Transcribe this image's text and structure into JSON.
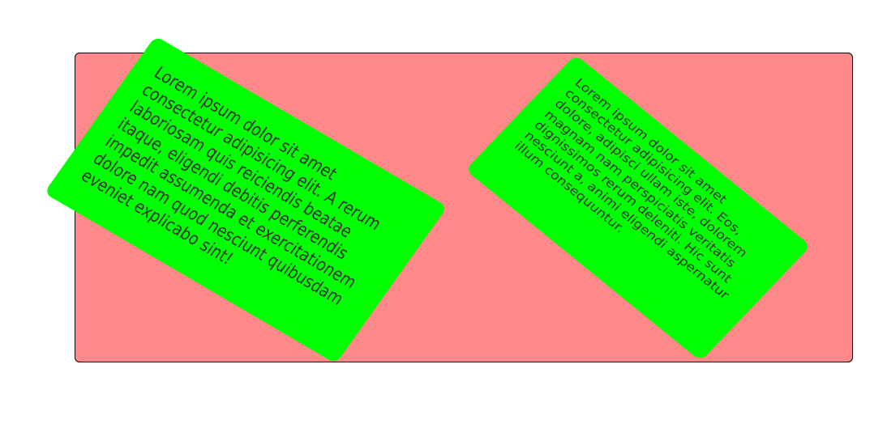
{
  "colors": {
    "container_bg": "#ff8888",
    "card_bg": "#00ff00",
    "text": "#333333"
  },
  "left_card": {
    "text": "Lorem ipsum dolor sit amet consectetur adipisicing elit. A rerum laboriosam quis reiciendis beatae itaque, eligendi debitis perferendis impedit assumenda et exercitationem dolore nam quod nesciunt quibusdam eveniet explicabo sint!"
  },
  "right_card": {
    "text": "Lorem ipsum dolor sit amet consectetur adipisicing elit. Eos, dolore, adipisci ullam iste, dolorem magnam nam perspiciatis veritatis dignissimos rerum deleniti. Hic sunt nesciunt a, animi eligendi aspernatur illum consequuntur."
  }
}
